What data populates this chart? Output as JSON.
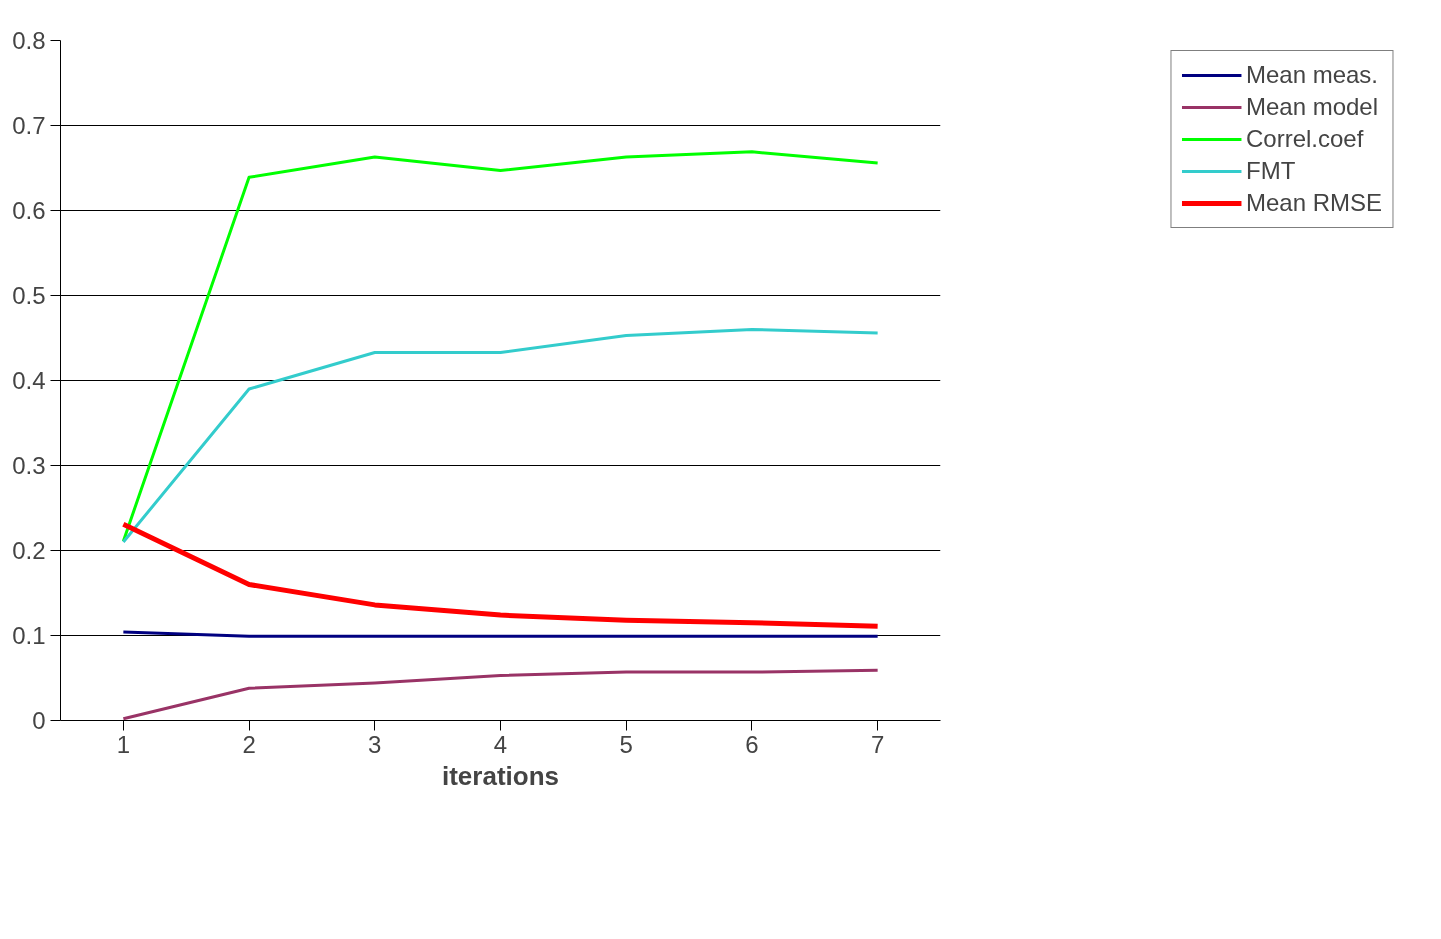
{
  "chart_data": {
    "type": "line",
    "xlabel": "iterations",
    "categories": [
      "1",
      "2",
      "3",
      "4",
      "5",
      "6",
      "7"
    ],
    "series": [
      {
        "name": "Mean meas.",
        "color": "#000080",
        "values": [
          0.104,
          0.099,
          0.099,
          0.099,
          0.099,
          0.099,
          0.099
        ]
      },
      {
        "name": "Mean model",
        "color": "#993366",
        "values": [
          0.002,
          0.038,
          0.044,
          0.053,
          0.057,
          0.057,
          0.059
        ]
      },
      {
        "name": "Correl.coef",
        "color": "#00ff00",
        "values": [
          0.211,
          0.639,
          0.663,
          0.647,
          0.663,
          0.669,
          0.656
        ]
      },
      {
        "name": "FMT",
        "color": "#33cccc",
        "values": [
          0.21,
          0.39,
          0.433,
          0.433,
          0.453,
          0.46,
          0.456
        ]
      },
      {
        "name": "Mean RMSE",
        "color": "#ff0000",
        "values": [
          0.231,
          0.16,
          0.136,
          0.124,
          0.118,
          0.115,
          0.111
        ]
      }
    ],
    "ylim": [
      0,
      0.8
    ],
    "yticks": [
      0,
      0.1,
      0.2,
      0.3,
      0.4,
      0.5,
      0.6,
      0.7,
      0.8
    ],
    "grid": "y",
    "legend": "top right"
  }
}
